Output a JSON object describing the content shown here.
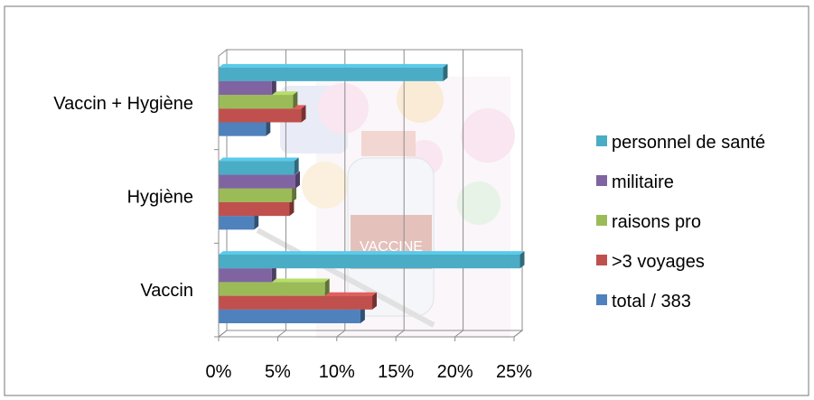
{
  "chart_data": {
    "type": "bar",
    "orientation": "horizontal",
    "style": "3d",
    "categories": [
      "Vaccin",
      "Hygiène",
      "Vaccin + Hygiène"
    ],
    "series": [
      {
        "name": "total / 383",
        "color": "#4f81bd",
        "values": [
          12.0,
          3.0,
          4.0
        ]
      },
      {
        "name": ">3 voyages",
        "color": "#c0504d",
        "values": [
          13.0,
          6.0,
          7.0
        ]
      },
      {
        "name": "raisons pro",
        "color": "#9bbb59",
        "values": [
          9.0,
          6.2,
          6.3
        ]
      },
      {
        "name": "militaire",
        "color": "#8064a2",
        "values": [
          4.5,
          6.5,
          4.5
        ]
      },
      {
        "name": "personnel de santé",
        "color": "#4bacc6",
        "values": [
          25.5,
          6.4,
          19.0
        ]
      }
    ],
    "x_ticks": [
      "0%",
      "5%",
      "10%",
      "15%",
      "20%",
      "25%"
    ],
    "xlim": [
      0,
      25
    ],
    "grid": true,
    "legend_position": "right",
    "background_image": "vaccine-illustration"
  }
}
